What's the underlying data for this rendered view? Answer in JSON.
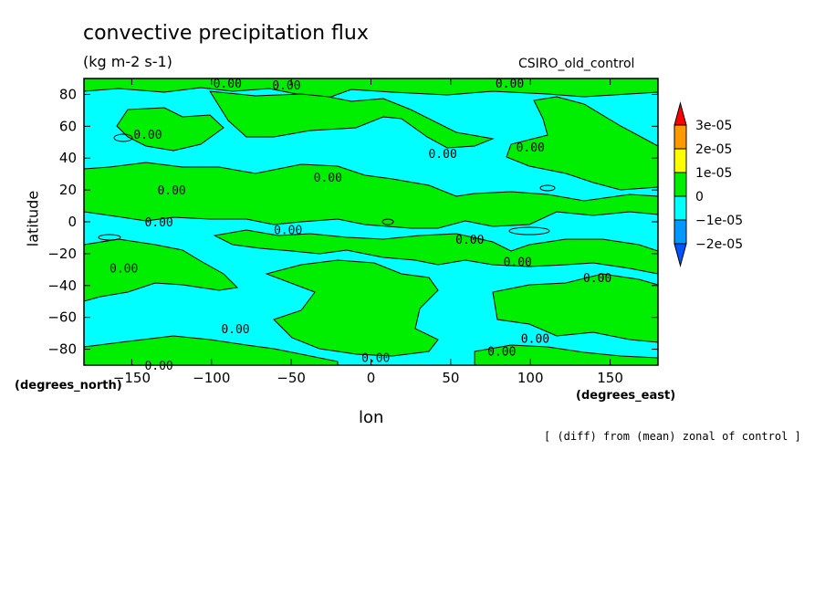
{
  "chart_data": {
    "type": "contour-map",
    "title": "convective precipitation flux",
    "units": "(kg m-2 s-1)",
    "model": "CSIRO_old_control",
    "xlabel": "lon",
    "ylabel": "latitude",
    "xunits": "(degrees_east)",
    "yunits": "(degrees_north)",
    "xlim": [
      -180,
      180
    ],
    "ylim": [
      -90,
      90
    ],
    "xticks": [
      -150,
      -100,
      -50,
      0,
      50,
      100,
      150
    ],
    "yticks": [
      80,
      60,
      40,
      20,
      0,
      -20,
      -40,
      -60,
      -80
    ],
    "contour_label": "0.00",
    "contour_label_positions": [
      [
        -90,
        87
      ],
      [
        -53,
        86
      ],
      [
        87,
        87
      ],
      [
        -140,
        55
      ],
      [
        -27,
        28
      ],
      [
        -125,
        20
      ],
      [
        -133,
        0
      ],
      [
        -52,
        -5
      ],
      [
        62,
        -11
      ],
      [
        -155,
        -29
      ],
      [
        92,
        -25
      ],
      [
        142,
        -35
      ],
      [
        -85,
        -67
      ],
      [
        103,
        -73
      ],
      [
        82,
        -81
      ],
      [
        3,
        -85
      ],
      [
        -133,
        -90
      ],
      [
        100,
        47
      ],
      [
        45,
        43
      ]
    ],
    "colorbar": {
      "levels": [
        "3e-05",
        "2e-05",
        "1e-05",
        "0",
        "−1e-05",
        "−2e-05"
      ],
      "colors": [
        "#ff0000",
        "#ff9900",
        "#ffff00",
        "#00ee00",
        "#00ffff",
        "#0099ff",
        "#0055ff"
      ]
    },
    "footnote": "[ (diff) from (mean) zonal of control ]"
  }
}
